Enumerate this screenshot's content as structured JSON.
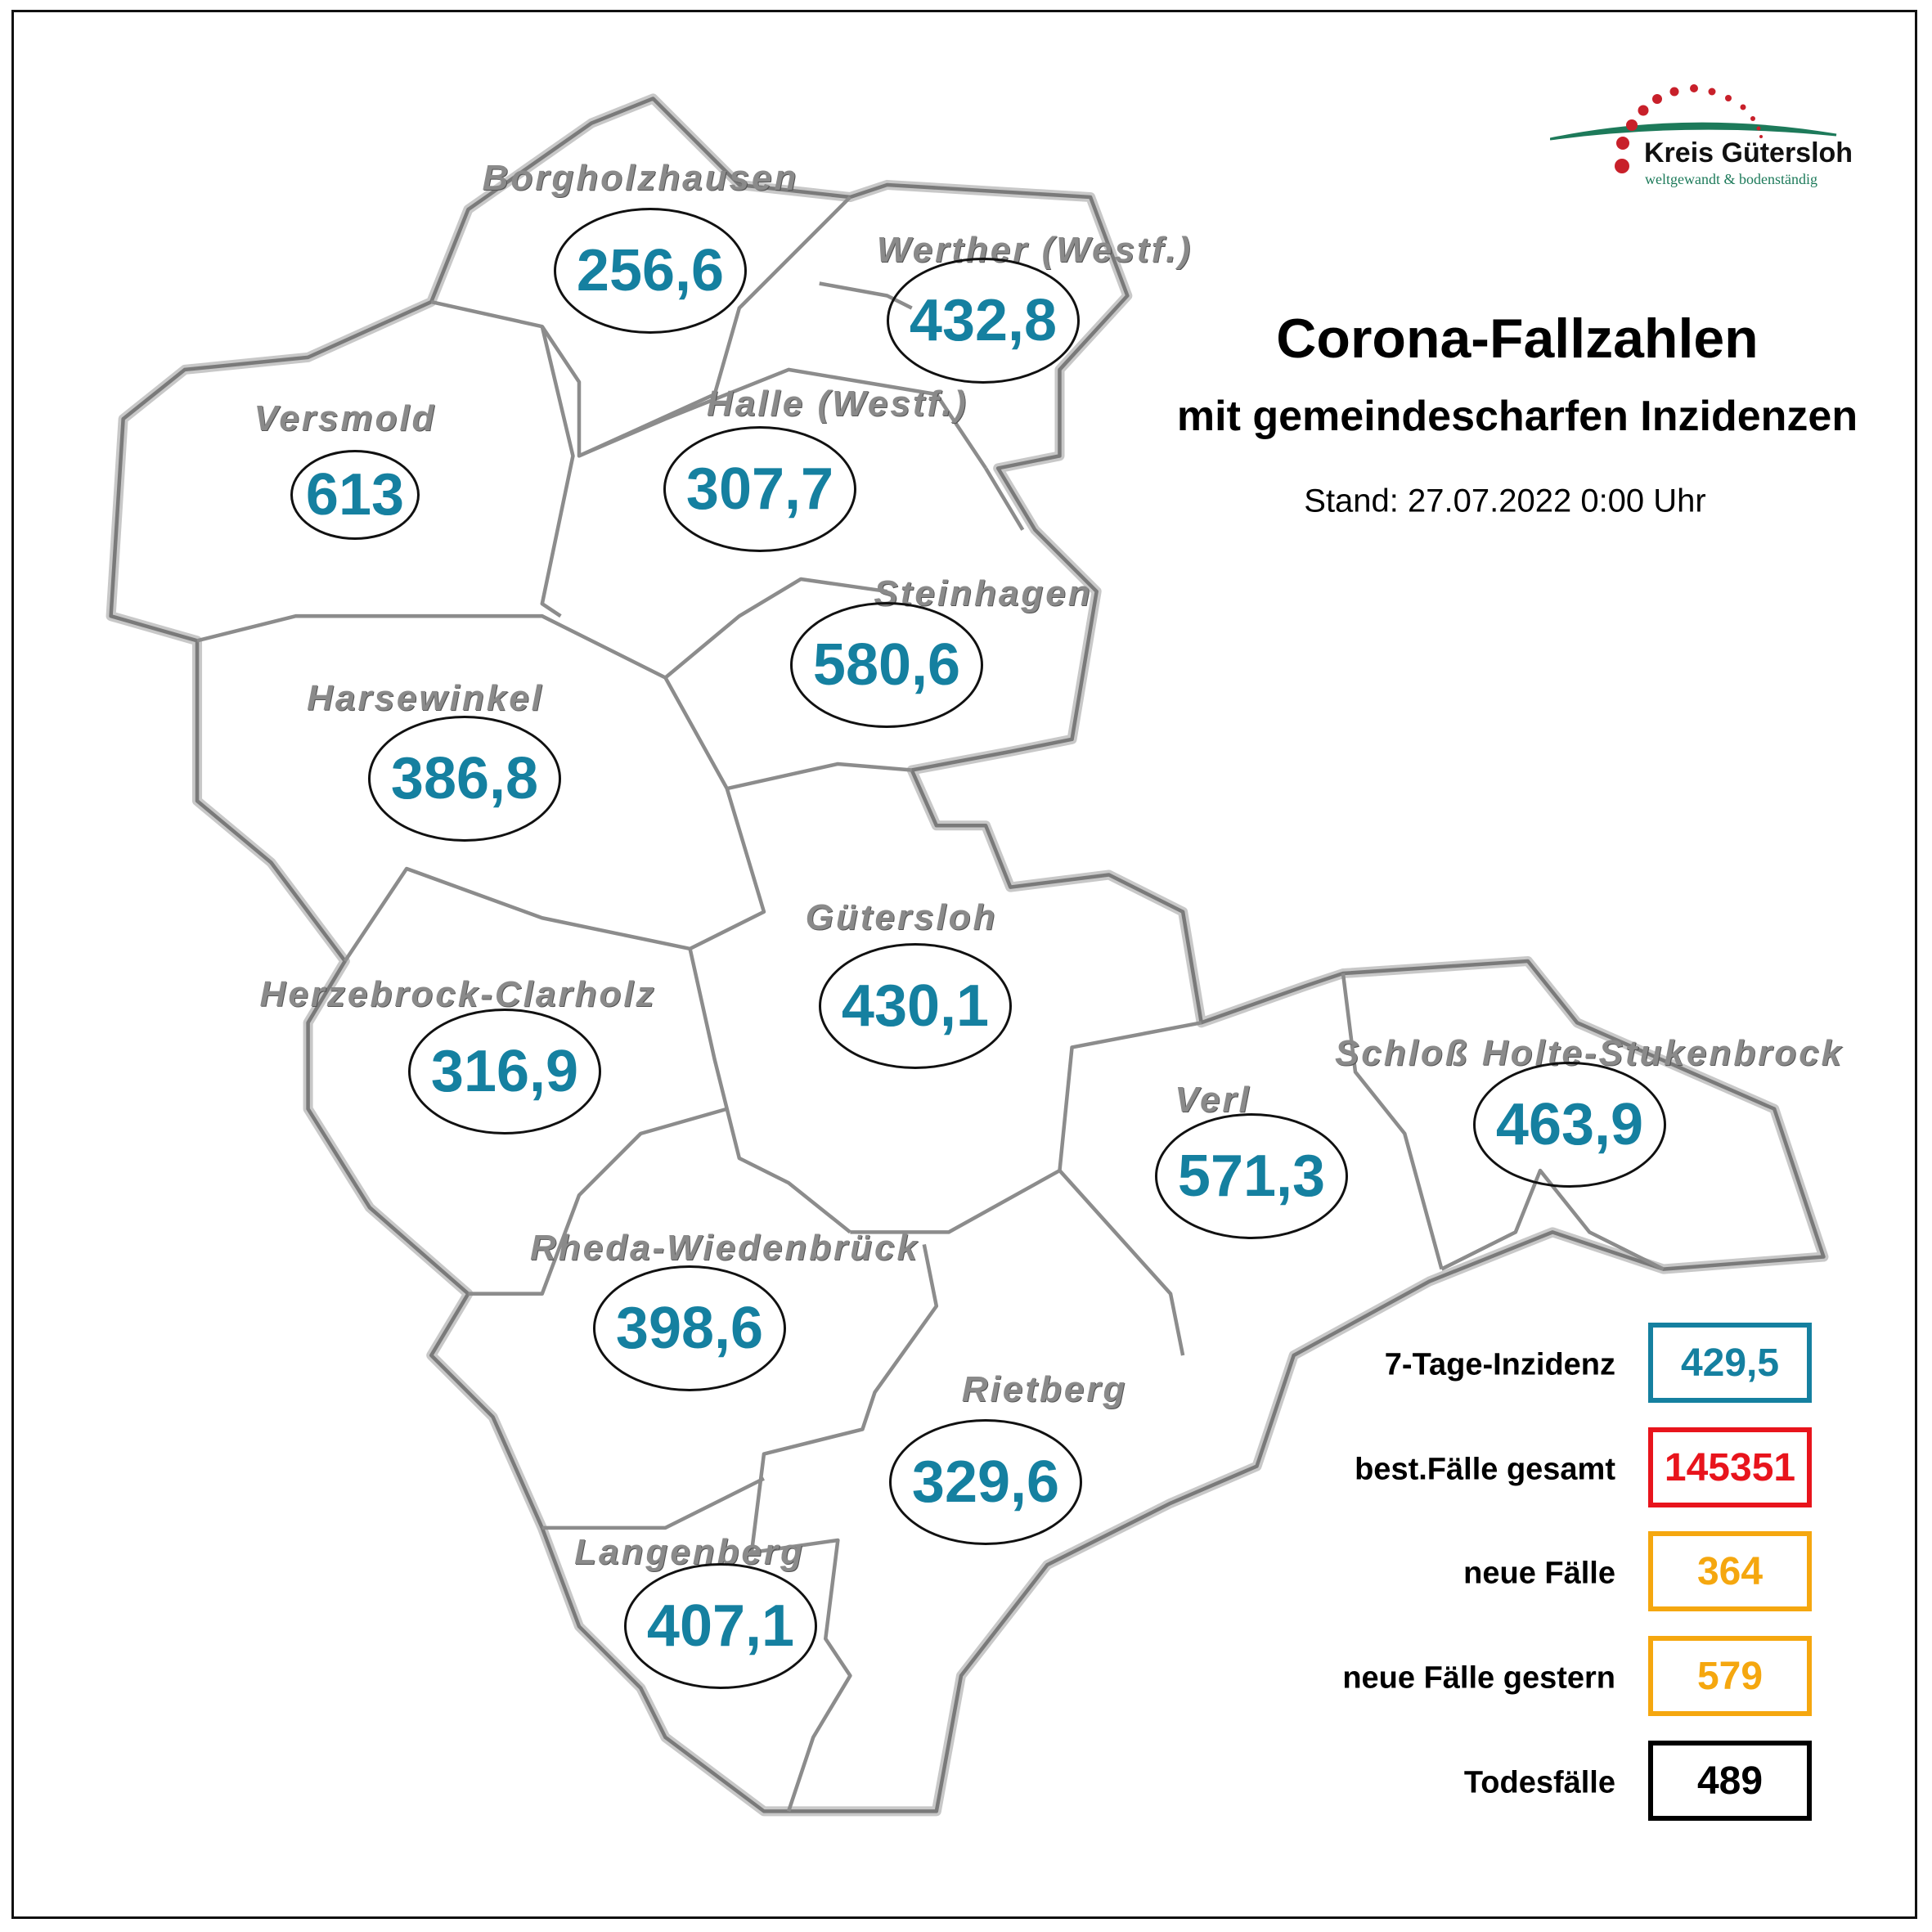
{
  "title": "Corona-Fallzahlen",
  "subtitle": "mit gemeindescharfen Inzidenzen",
  "stand": "Stand: 27.07.2022 0:00 Uhr",
  "logo": {
    "name": "Kreis Gütersloh",
    "tagline": "weltgewandt & bodenständig",
    "dot_color": "#c8202a",
    "arc_color": "#1d7a5a"
  },
  "colors": {
    "incidence": "#1580a0",
    "boundary": "#8c8c8c",
    "label": "#8a8a8a"
  },
  "municipalities": [
    {
      "name": "Borgholzhausen",
      "incidence": "256,6"
    },
    {
      "name": "Werther (Westf.)",
      "incidence": "432,8"
    },
    {
      "name": "Versmold",
      "incidence": "613"
    },
    {
      "name": "Halle (Westf.)",
      "incidence": "307,7"
    },
    {
      "name": "Steinhagen",
      "incidence": "580,6"
    },
    {
      "name": "Harsewinkel",
      "incidence": "386,8"
    },
    {
      "name": "Gütersloh",
      "incidence": "430,1"
    },
    {
      "name": "Herzebrock-Clarholz",
      "incidence": "316,9"
    },
    {
      "name": "Verl",
      "incidence": "571,3"
    },
    {
      "name": "Schloß Holte-Stukenbrock",
      "incidence": "463,9"
    },
    {
      "name": "Rheda-Wiedenbrück",
      "incidence": "398,6"
    },
    {
      "name": "Rietberg",
      "incidence": "329,6"
    },
    {
      "name": "Langenberg",
      "incidence": "407,1"
    }
  ],
  "stats": [
    {
      "label": "7-Tage-Inzidenz",
      "value": "429,5",
      "color": "#1580a0"
    },
    {
      "label": "best.Fälle gesamt",
      "value": "145351",
      "color": "#e8141c"
    },
    {
      "label": "neue Fälle",
      "value": "364",
      "color": "#f5a70f"
    },
    {
      "label": "neue Fälle gestern",
      "value": "579",
      "color": "#f5a70f"
    },
    {
      "label": "Todesfälle",
      "value": "489",
      "color": "#000000"
    }
  ]
}
